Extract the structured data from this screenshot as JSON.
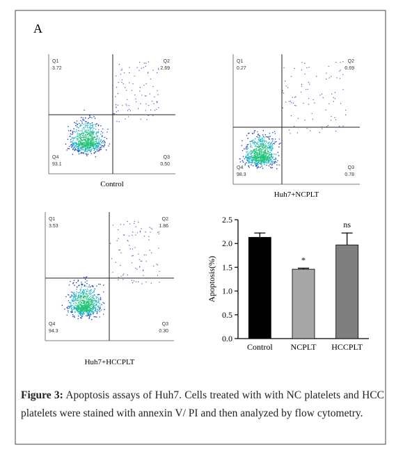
{
  "panel_label": "A",
  "flow_plots": [
    {
      "name": "Control",
      "quadrants": {
        "Q1": "3.72",
        "Q2": "2.69",
        "Q3": "0.50",
        "Q4": "93.1"
      }
    },
    {
      "name": "Huh7+NCPLT",
      "quadrants": {
        "Q1": "0.27",
        "Q2": "0.69",
        "Q3": "0.78",
        "Q4": "98.3"
      }
    },
    {
      "name": "Huh7+HCCPLT",
      "quadrants": {
        "Q1": "3.53",
        "Q2": "1.86",
        "Q3": "0.30",
        "Q4": "94.3"
      }
    }
  ],
  "chart_data": {
    "type": "bar",
    "categories": [
      "Control",
      "NCPLT",
      "HCCPLT"
    ],
    "values": [
      2.13,
      1.46,
      1.97
    ],
    "errors": [
      0.09,
      0.02,
      0.25
    ],
    "colors": [
      "#000000",
      "#a6a6a6",
      "#7f7f7f"
    ],
    "ylabel": "Apoptosis(%)",
    "ylim": [
      0,
      2.5
    ],
    "yticks": [
      {
        "value": 0,
        "label": "0.0"
      },
      0.5,
      {
        "value": 1,
        "label": "1.0"
      },
      1.5,
      {
        "value": 2,
        "label": "2.0"
      },
      2.5
    ],
    "annotations": [
      {
        "category": "NCPLT",
        "text": "*"
      },
      {
        "category": "HCCPLT",
        "text": "ns"
      }
    ]
  },
  "caption": {
    "label": "Figure 3:",
    "text": "Apoptosis assays of Huh7. Cells treated with with NC platelets and HCC platelets were stained with annexin V/ PI and then analyzed by flow cytometry."
  }
}
